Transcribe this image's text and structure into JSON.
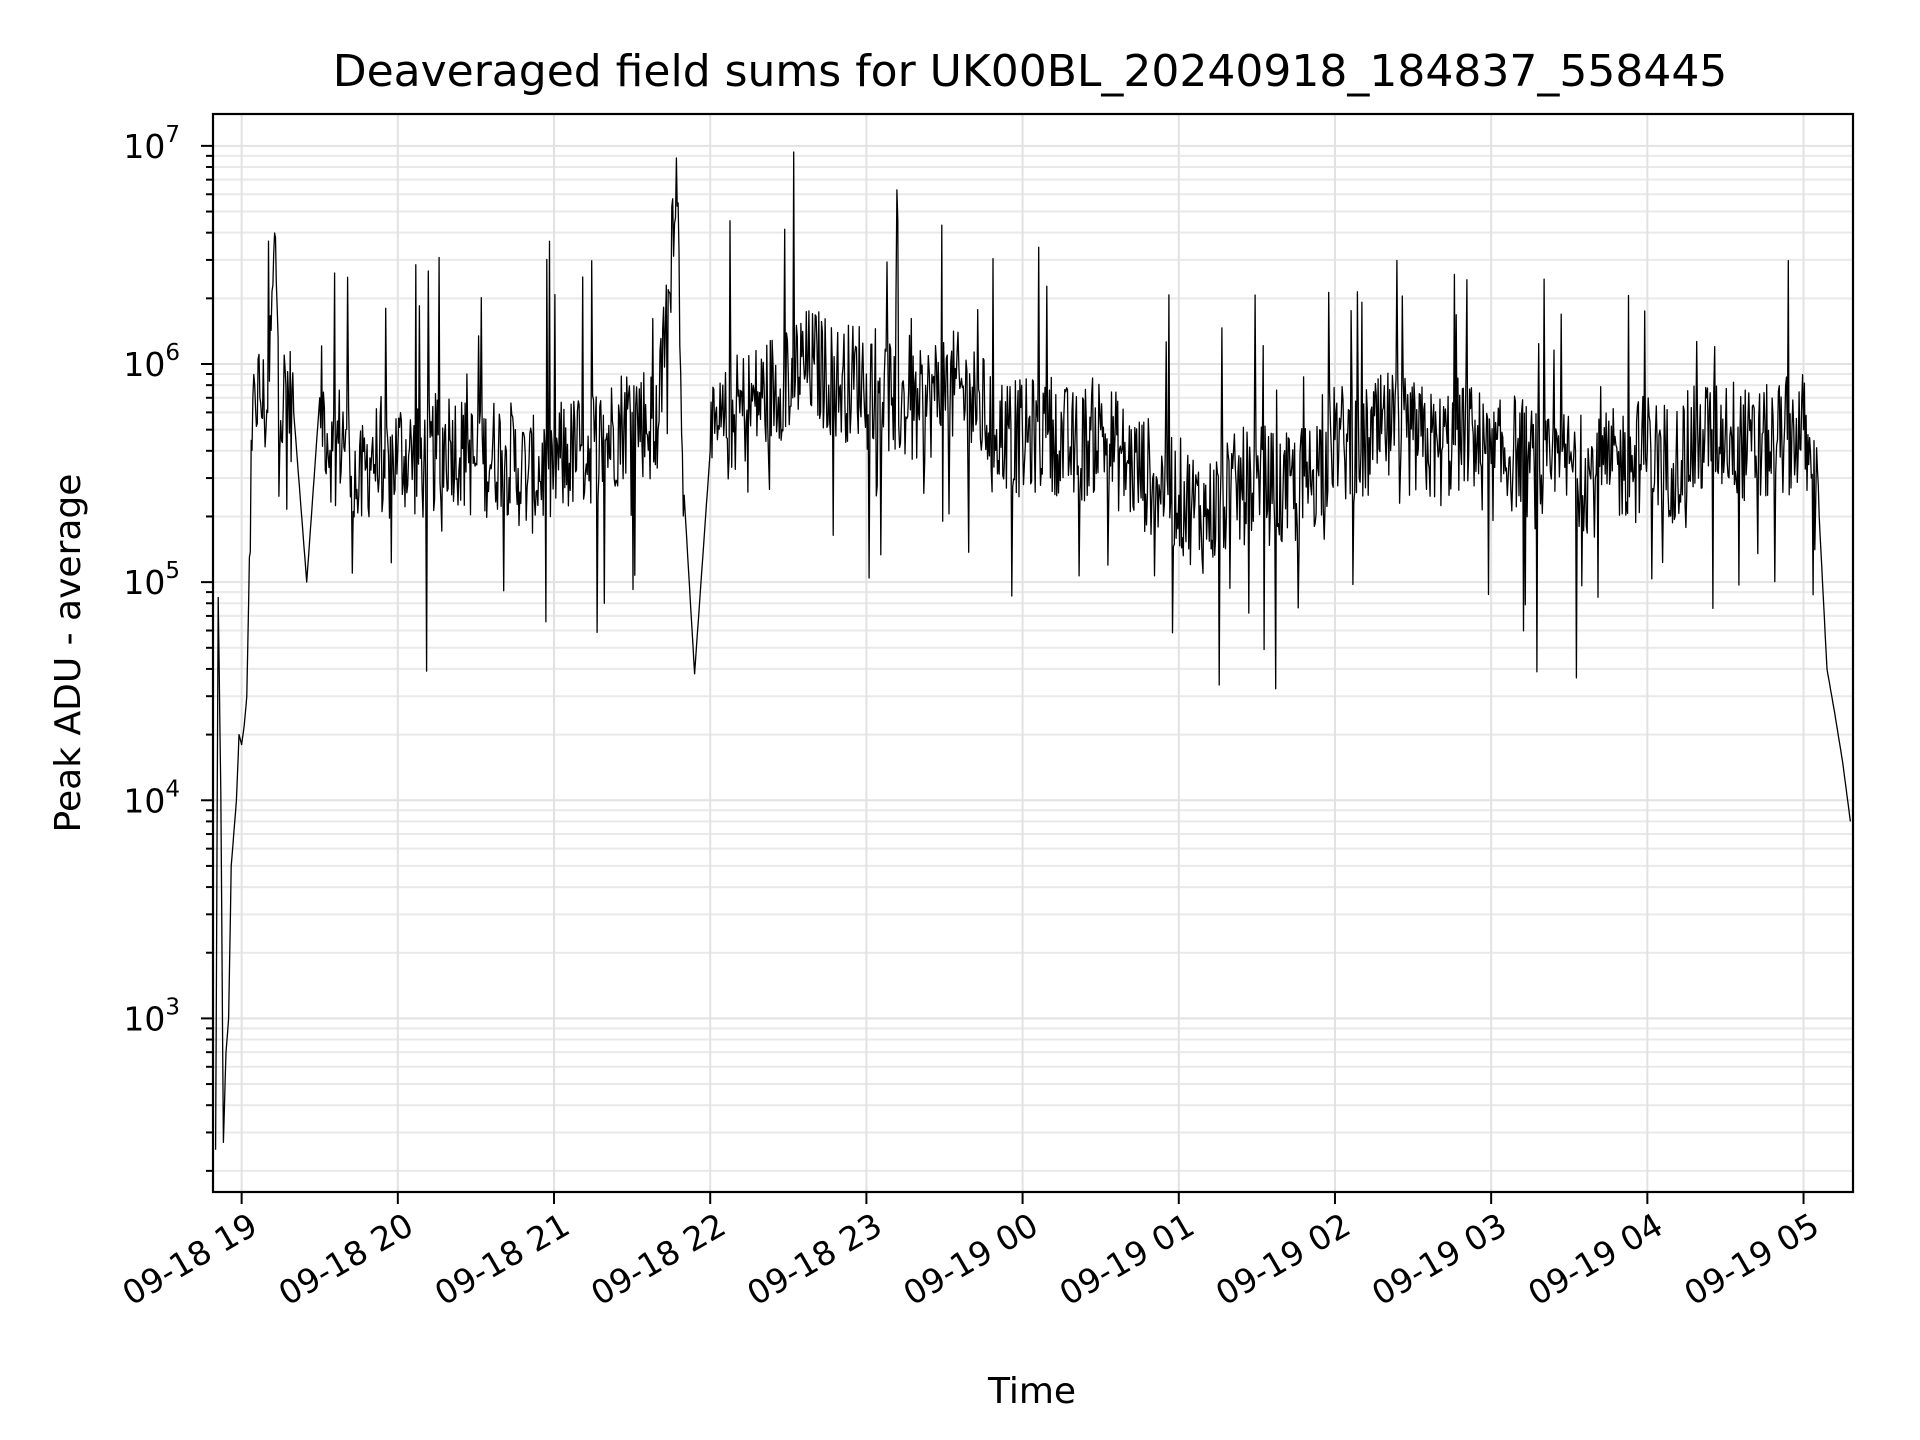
{
  "chart_data": {
    "type": "line",
    "title": "Deaveraged field sums for UK00BL_20240918_184837_558445",
    "xlabel": "Time",
    "ylabel": "Peak ADU - average",
    "yscale": "log",
    "ylim": [
      160,
      14000000
    ],
    "xlim": [
      "2024-09-18 18:49",
      "2024-09-19 05:19"
    ],
    "grid": true,
    "legend": "none",
    "line_color": "#000000",
    "x_ticks": [
      {
        "value": "2024-09-18 19:00",
        "label": "09-18 19"
      },
      {
        "value": "2024-09-18 20:00",
        "label": "09-18 20"
      },
      {
        "value": "2024-09-18 21:00",
        "label": "09-18 21"
      },
      {
        "value": "2024-09-18 22:00",
        "label": "09-18 22"
      },
      {
        "value": "2024-09-18 23:00",
        "label": "09-18 23"
      },
      {
        "value": "2024-09-19 00:00",
        "label": "09-19 00"
      },
      {
        "value": "2024-09-19 01:00",
        "label": "09-19 01"
      },
      {
        "value": "2024-09-19 02:00",
        "label": "09-19 02"
      },
      {
        "value": "2024-09-19 03:00",
        "label": "09-19 03"
      },
      {
        "value": "2024-09-19 04:00",
        "label": "09-19 04"
      },
      {
        "value": "2024-09-19 05:00",
        "label": "09-19 05"
      }
    ],
    "y_ticks": [
      {
        "value": 1000,
        "base": "10",
        "exp": "3"
      },
      {
        "value": 10000,
        "base": "10",
        "exp": "4"
      },
      {
        "value": 100000,
        "base": "10",
        "exp": "5"
      },
      {
        "value": 1000000,
        "base": "10",
        "exp": "6"
      },
      {
        "value": 10000000,
        "base": "10",
        "exp": "7"
      }
    ],
    "series": [
      {
        "x": [
          "2024-09-18 18:50",
          "2024-09-18 18:51",
          "2024-09-18 18:52",
          "2024-09-18 18:53",
          "2024-09-18 18:54",
          "2024-09-18 18:55",
          "2024-09-18 18:56",
          "2024-09-18 18:58",
          "2024-09-18 18:59",
          "2024-09-18 19:00",
          "2024-09-18 19:01",
          "2024-09-18 19:02",
          "2024-09-18 19:03",
          "2024-09-18 19:05",
          "2024-09-18 19:07",
          "2024-09-18 19:10",
          "2024-09-18 19:13",
          "2024-09-18 19:15",
          "2024-09-18 19:17",
          "2024-09-18 19:20",
          "2024-09-18 19:25",
          "2024-09-18 19:30",
          "2024-09-18 19:35",
          "2024-09-18 19:40",
          "2024-09-18 19:45",
          "2024-09-18 19:50",
          "2024-09-18 19:55",
          "2024-09-18 20:00",
          "2024-09-18 20:10",
          "2024-09-18 20:20",
          "2024-09-18 20:30",
          "2024-09-18 20:40",
          "2024-09-18 20:50",
          "2024-09-18 21:00",
          "2024-09-18 21:10",
          "2024-09-18 21:20",
          "2024-09-18 21:30",
          "2024-09-18 21:40",
          "2024-09-18 21:47",
          "2024-09-18 21:50",
          "2024-09-18 21:54",
          "2024-09-18 22:00",
          "2024-09-18 22:10",
          "2024-09-18 22:20",
          "2024-09-18 22:30",
          "2024-09-18 22:40",
          "2024-09-18 22:50",
          "2024-09-18 23:00",
          "2024-09-18 23:10",
          "2024-09-18 23:20",
          "2024-09-18 23:30",
          "2024-09-18 23:40",
          "2024-09-18 23:50",
          "2024-09-19 00:00",
          "2024-09-19 00:10",
          "2024-09-19 00:20",
          "2024-09-19 00:30",
          "2024-09-19 00:40",
          "2024-09-19 00:50",
          "2024-09-19 01:00",
          "2024-09-19 01:10",
          "2024-09-19 01:20",
          "2024-09-19 01:30",
          "2024-09-19 01:40",
          "2024-09-19 01:50",
          "2024-09-19 02:00",
          "2024-09-19 02:10",
          "2024-09-19 02:20",
          "2024-09-19 02:30",
          "2024-09-19 02:40",
          "2024-09-19 02:50",
          "2024-09-19 03:00",
          "2024-09-19 03:10",
          "2024-09-19 03:20",
          "2024-09-19 03:30",
          "2024-09-19 03:40",
          "2024-09-19 03:50",
          "2024-09-19 04:00",
          "2024-09-19 04:10",
          "2024-09-19 04:20",
          "2024-09-19 04:30",
          "2024-09-19 04:40",
          "2024-09-19 04:50",
          "2024-09-19 05:00",
          "2024-09-19 05:03",
          "2024-09-19 05:06",
          "2024-09-19 05:09",
          "2024-09-19 05:12",
          "2024-09-19 05:15",
          "2024-09-19 05:18"
        ],
        "y": [
          250,
          85000,
          11000,
          270,
          700,
          1000,
          5000,
          10000,
          20000,
          18000,
          22000,
          30000,
          130000,
          800000,
          700000,
          600000,
          3800000,
          550000,
          800000,
          600000,
          100000,
          700000,
          400000,
          500000,
          250000,
          400000,
          300000,
          400000,
          350000,
          450000,
          350000,
          400000,
          300000,
          350000,
          400000,
          450000,
          600000,
          500000,
          8800000,
          250000,
          38000,
          400000,
          600000,
          700000,
          900000,
          1000000,
          800000,
          900000,
          700000,
          600000,
          800000,
          700000,
          500000,
          450000,
          500000,
          400000,
          500000,
          350000,
          300000,
          250000,
          200000,
          250000,
          300000,
          250000,
          300000,
          450000,
          400000,
          500000,
          450000,
          400000,
          500000,
          350000,
          400000,
          300000,
          350000,
          300000,
          350000,
          400000,
          350000,
          450000,
          500000,
          400000,
          450000,
          500000,
          300000,
          200000,
          40000,
          25000,
          15000,
          8000
        ]
      }
    ]
  }
}
